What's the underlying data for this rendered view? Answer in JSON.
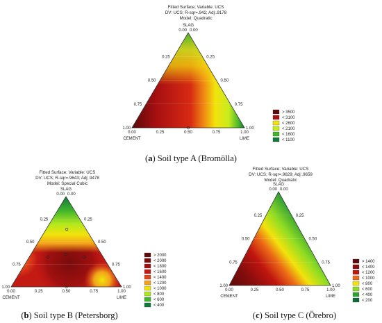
{
  "chart_data": [
    {
      "type": "ternary contour",
      "header": [
        "Fitted Surface; Variable: UCS",
        "DV: UCS; R-sqr=.942; Adj:.9178",
        "Model: Quadratic"
      ],
      "vertex_labels": {
        "top": "SLAG",
        "left": "CEMENT",
        "right": "LIME"
      },
      "ticks": [
        "0.00",
        "0.25",
        "0.50",
        "0.75",
        "1.00"
      ],
      "legend": [
        {
          "label": "> 3500",
          "color": "#5c0a0a"
        },
        {
          "label": "< 3100",
          "color": "#a80f12"
        },
        {
          "label": "< 2600",
          "color": "#f2e30c"
        },
        {
          "label": "< 2100",
          "color": "#c8eb1e"
        },
        {
          "label": "< 1600",
          "color": "#43b52c"
        },
        {
          "label": "< 1100",
          "color": "#0f7a3a"
        }
      ],
      "design_points": [
        [
          0.5,
          0.5,
          0
        ]
      ],
      "caption_letter": "a",
      "caption_text": " Soil type A (Bromölla)"
    },
    {
      "type": "ternary contour",
      "header": [
        "Fitted Surface; Variable: UCS",
        "DV: UCS; R-sqr=.9643; Adj:.9478",
        "Model: Special Cubic"
      ],
      "vertex_labels": {
        "top": "SLAG",
        "left": "CEMENT",
        "right": "LIME"
      },
      "ticks": [
        "0.00",
        "0.25",
        "0.50",
        "0.75",
        "1.00"
      ],
      "legend": [
        {
          "label": "> 2000",
          "color": "#5c0a0a"
        },
        {
          "label": "< 2000",
          "color": "#7a0c0c"
        },
        {
          "label": "< 1800",
          "color": "#a01010"
        },
        {
          "label": "< 1600",
          "color": "#c41a14"
        },
        {
          "label": "< 1400",
          "color": "#e04418"
        },
        {
          "label": "< 1200",
          "color": "#f2a31a"
        },
        {
          "label": "< 1000",
          "color": "#f2e30c"
        },
        {
          "label": "< 800",
          "color": "#b0e81e"
        },
        {
          "label": "< 600",
          "color": "#43b52c"
        },
        {
          "label": "< 400",
          "color": "#0f7a3a"
        }
      ],
      "design_points": [
        [
          0.5,
          0.5,
          0
        ],
        [
          0.33,
          0.33,
          0.33
        ],
        [
          0.17,
          0.5,
          0.33
        ],
        [
          0.5,
          0.17,
          0.33
        ],
        [
          0.17,
          0.17,
          0.67
        ]
      ],
      "caption_letter": "b",
      "caption_text": " Soil type B (Petersborg)"
    },
    {
      "type": "ternary contour",
      "header": [
        "Fitted Surface; Variable: UCS",
        "DV: UCS; R-sqr=.9829; Adj:.9659",
        "Model: Quadratic"
      ],
      "vertex_labels": {
        "top": "SLAG",
        "left": "CEMENT",
        "right": "LIME"
      },
      "ticks": [
        "0.00",
        "0.25",
        "0.50",
        "0.75",
        "1.00"
      ],
      "legend": [
        {
          "label": "> 1400",
          "color": "#5c0a0a"
        },
        {
          "label": "< 1400",
          "color": "#8a0d0d"
        },
        {
          "label": "< 1200",
          "color": "#c0160f"
        },
        {
          "label": "< 1000",
          "color": "#ec6a17"
        },
        {
          "label": "< 800",
          "color": "#f2e30c"
        },
        {
          "label": "< 600",
          "color": "#8fdc24"
        },
        {
          "label": "< 400",
          "color": "#2f9e34"
        },
        {
          "label": "< 200",
          "color": "#0f6a37"
        }
      ],
      "design_points": [],
      "caption_letter": "c",
      "caption_text": " Soil type C (Örebro)"
    }
  ]
}
